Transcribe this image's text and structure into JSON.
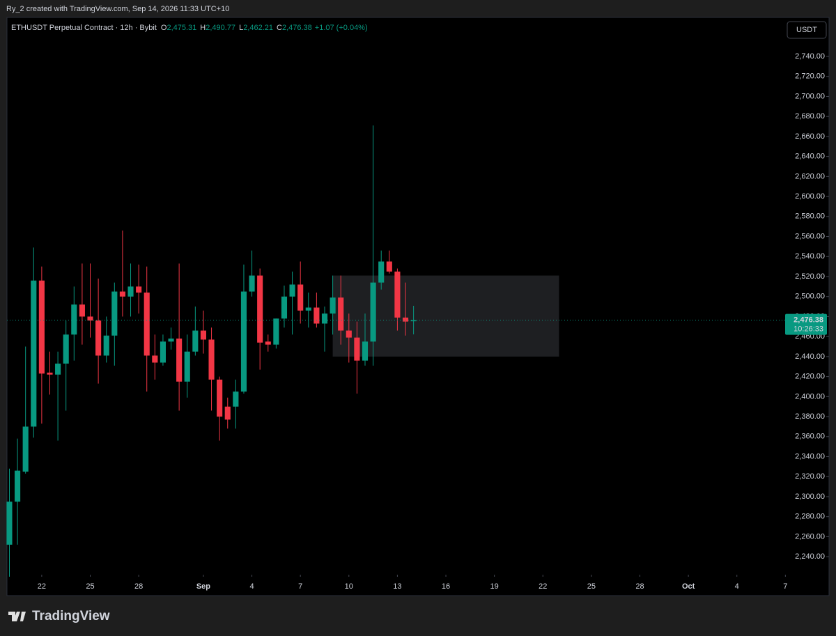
{
  "header": {
    "attribution": "Ry_2 created with TradingView.com, Sep 14, 2026 11:33 UTC+10"
  },
  "footer": {
    "logo": "TradingView"
  },
  "currency_button": "USDT",
  "chart_data": {
    "type": "candlestick",
    "symbol": "ETHUSDT Perpetual Contract · 12h · Bybit",
    "ohlc_letters": [
      "O",
      "H",
      "L",
      "C"
    ],
    "last_labels": {
      "open": "2,475.31",
      "high": "2,490.77",
      "low": "2,462.21",
      "close": "2,476.38",
      "change": "+1.07 (+0.04%)"
    },
    "countdown": "10:26:33",
    "up_color": "#089981",
    "down_color": "#f23645",
    "open": [
      2252,
      2295,
      2325,
      2370,
      2516,
      2424,
      2422,
      2433,
      2462,
      2492,
      2480,
      2476,
      2441,
      2461,
      2505,
      2500,
      2510,
      2504,
      2441,
      2434,
      2455,
      2458,
      2415,
      2445,
      2466,
      2457,
      2417,
      2390,
      2390,
      2405,
      2505,
      2521,
      2455,
      2452,
      2478,
      2500,
      2512,
      2486,
      2489,
      2473,
      2483,
      2499,
      2466,
      2459,
      2436,
      2455,
      2514,
      2535,
      2525,
      2479,
      2475.31
    ],
    "high": [
      2328,
      2358,
      2450,
      2549,
      2530,
      2445,
      2445,
      2476,
      2510,
      2533,
      2533,
      2518,
      2480,
      2514,
      2566,
      2533,
      2532,
      2530,
      2462,
      2462,
      2469,
      2533,
      2462,
      2490,
      2486,
      2469,
      2420,
      2399,
      2417,
      2532,
      2546,
      2528,
      2462,
      2478,
      2511,
      2525,
      2535,
      2504,
      2504,
      2490,
      2521,
      2521,
      2483,
      2475,
      2483,
      2671,
      2546,
      2546,
      2528,
      2514,
      2490.77
    ],
    "low": [
      2220,
      2252,
      2323,
      2359,
      2373,
      2402,
      2356,
      2386,
      2436,
      2452,
      2459,
      2413,
      2434,
      2431,
      2480,
      2480,
      2483,
      2405,
      2417,
      2431,
      2447,
      2386,
      2399,
      2441,
      2443,
      2386,
      2356,
      2368,
      2368,
      2403,
      2500,
      2427,
      2445,
      2448,
      2469,
      2462,
      2473,
      2469,
      2469,
      2445,
      2462,
      2452,
      2434,
      2403,
      2431,
      2431,
      2507,
      2523,
      2466,
      2461,
      2462.21
    ],
    "close": [
      2295,
      2326,
      2370,
      2516,
      2423,
      2422,
      2433,
      2462,
      2492,
      2480,
      2476,
      2441,
      2461,
      2505,
      2500,
      2510,
      2504,
      2441,
      2434,
      2455,
      2458,
      2415,
      2445,
      2466,
      2457,
      2417,
      2380,
      2377,
      2405,
      2505,
      2521,
      2454,
      2452,
      2478,
      2500,
      2512,
      2486,
      2489,
      2473,
      2483,
      2499,
      2466,
      2459,
      2436,
      2455,
      2514,
      2535,
      2525,
      2479,
      2475,
      2476.38
    ],
    "box": {
      "x": [
        40,
        68
      ],
      "y": [
        2440,
        2521
      ],
      "color": "#1e1f22"
    },
    "xlim": [
      -0.3,
      101.4
    ],
    "xticks": [
      {
        "value": 4,
        "label": "22"
      },
      {
        "value": 10,
        "label": "25"
      },
      {
        "value": 16,
        "label": "28"
      },
      {
        "value": 24,
        "label": "Sep"
      },
      {
        "value": 30,
        "label": "4"
      },
      {
        "value": 36,
        "label": "7"
      },
      {
        "value": 42,
        "label": "10"
      },
      {
        "value": 48,
        "label": "13"
      },
      {
        "value": 54,
        "label": "16"
      },
      {
        "value": 60,
        "label": "19"
      },
      {
        "value": 66,
        "label": "22"
      },
      {
        "value": 72,
        "label": "25"
      },
      {
        "value": 78,
        "label": "28"
      },
      {
        "value": 84,
        "label": "Oct"
      },
      {
        "value": 90,
        "label": "4"
      },
      {
        "value": 96,
        "label": "7"
      }
    ],
    "ylim": [
      2222,
      2779
    ],
    "yticks": [
      {
        "value": 2240,
        "label": "2,240.00"
      },
      {
        "value": 2260,
        "label": "2,260.00"
      },
      {
        "value": 2280,
        "label": "2,280.00"
      },
      {
        "value": 2300,
        "label": "2,300.00"
      },
      {
        "value": 2320,
        "label": "2,320.00"
      },
      {
        "value": 2340,
        "label": "2,340.00"
      },
      {
        "value": 2360,
        "label": "2,360.00"
      },
      {
        "value": 2380,
        "label": "2,380.00"
      },
      {
        "value": 2400,
        "label": "2,400.00"
      },
      {
        "value": 2420,
        "label": "2,420.00"
      },
      {
        "value": 2440,
        "label": "2,440.00"
      },
      {
        "value": 2460,
        "label": "2,460.00"
      },
      {
        "value": 2480,
        "label": "2,480.00"
      },
      {
        "value": 2500,
        "label": "2,500.00"
      },
      {
        "value": 2520,
        "label": "2,520.00"
      },
      {
        "value": 2540,
        "label": "2,540.00"
      },
      {
        "value": 2560,
        "label": "2,560.00"
      },
      {
        "value": 2580,
        "label": "2,580.00"
      },
      {
        "value": 2600,
        "label": "2,600.00"
      },
      {
        "value": 2620,
        "label": "2,620.00"
      },
      {
        "value": 2640,
        "label": "2,640.00"
      },
      {
        "value": 2660,
        "label": "2,660.00"
      },
      {
        "value": 2680,
        "label": "2,680.00"
      },
      {
        "value": 2700,
        "label": "2,700.00"
      },
      {
        "value": 2720,
        "label": "2,720.00"
      },
      {
        "value": 2740,
        "label": "2,740.00"
      }
    ],
    "grid": false
  }
}
